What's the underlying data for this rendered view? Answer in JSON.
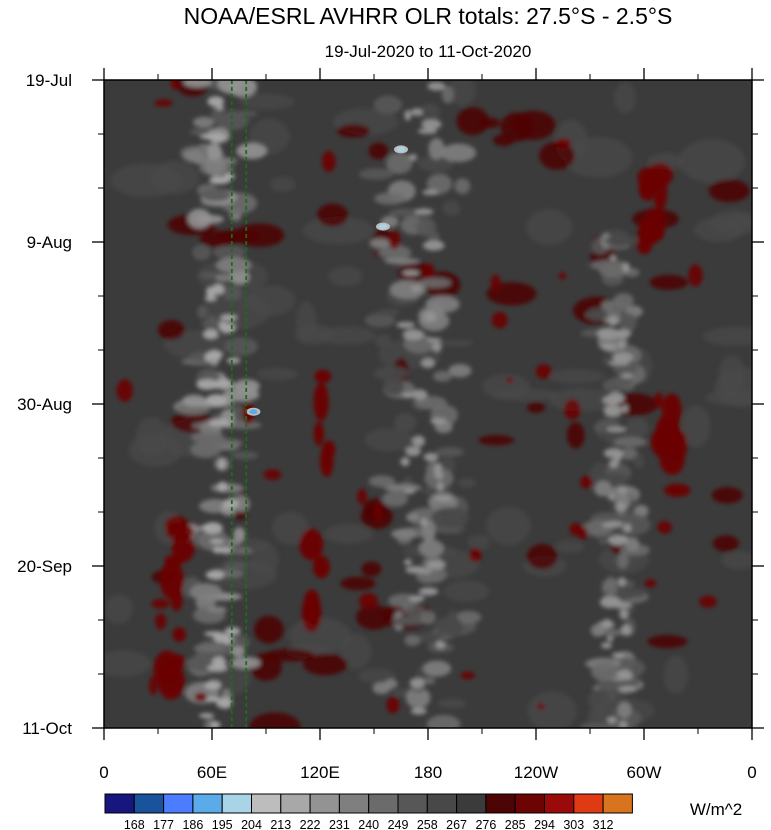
{
  "chart_data": {
    "type": "heatmap",
    "title": "NOAA/ESRL AVHRR OLR totals: 27.5°S - 2.5°S",
    "subtitle": "19-Jul-2020 to 11-Oct-2020",
    "x_axis": {
      "kind": "longitude",
      "range_deg_east": [
        0,
        360
      ],
      "tick_values_deg_east": [
        0,
        60,
        120,
        180,
        240,
        300,
        360
      ],
      "tick_labels": [
        "0",
        "60E",
        "120E",
        "180",
        "120W",
        "60W",
        "0"
      ]
    },
    "y_axis": {
      "kind": "time",
      "range_days": [
        0,
        84
      ],
      "direction": "top_to_bottom",
      "tick_values_days": [
        0,
        21,
        42,
        63,
        84
      ],
      "tick_labels": [
        "19-Jul",
        "9-Aug",
        "30-Aug",
        "20-Sep",
        "11-Oct"
      ]
    },
    "colorbar": {
      "units": "W/m^2",
      "levels": [
        168,
        177,
        186,
        195,
        204,
        213,
        222,
        231,
        240,
        249,
        258,
        267,
        276,
        285,
        294,
        303,
        312
      ],
      "colors": [
        "#16167e",
        "#19539c",
        "#4c7cff",
        "#5aabe8",
        "#a9d3e6",
        "#bdbdbd",
        "#a8a8a8",
        "#939393",
        "#7f7f7f",
        "#6b6b6b",
        "#575757",
        "#484848",
        "#3b3b3b",
        "#4d0404",
        "#6c0404",
        "#9a0a0a",
        "#e03a14",
        "#d8741e"
      ]
    },
    "reference_lines": [
      {
        "lon_deg_east": 71,
        "style": "dashed",
        "color": "#1d6b1d"
      },
      {
        "lon_deg_east": 79,
        "style": "dashed",
        "color": "#1d6b1d"
      }
    ],
    "field_summary": {
      "background_olr": 267,
      "low_olr_bands": [
        {
          "lon_start": 45,
          "lon_end": 85,
          "day_start": 0,
          "day_end": 84,
          "olr": 222
        },
        {
          "lon_start": 150,
          "lon_end": 205,
          "day_start": 0,
          "day_end": 84,
          "olr": 231
        },
        {
          "lon_start": 270,
          "lon_end": 300,
          "day_start": 20,
          "day_end": 84,
          "olr": 231
        }
      ],
      "minimum_olr_spots": [
        {
          "lon": 165,
          "day": 9,
          "olr": 195
        },
        {
          "lon": 155,
          "day": 19,
          "olr": 195
        },
        {
          "lon": 83,
          "day": 43,
          "olr": 186
        }
      ],
      "high_olr_regions": [
        {
          "lon": 40,
          "day_start": 55,
          "day_end": 80,
          "olr": 285
        },
        {
          "lon": 120,
          "day_start": 35,
          "day_end": 70,
          "olr": 285
        },
        {
          "lon": 305,
          "day_start": 12,
          "day_end": 22,
          "olr": 285
        },
        {
          "lon": 315,
          "day_start": 38,
          "day_end": 56,
          "olr": 285
        }
      ]
    }
  }
}
